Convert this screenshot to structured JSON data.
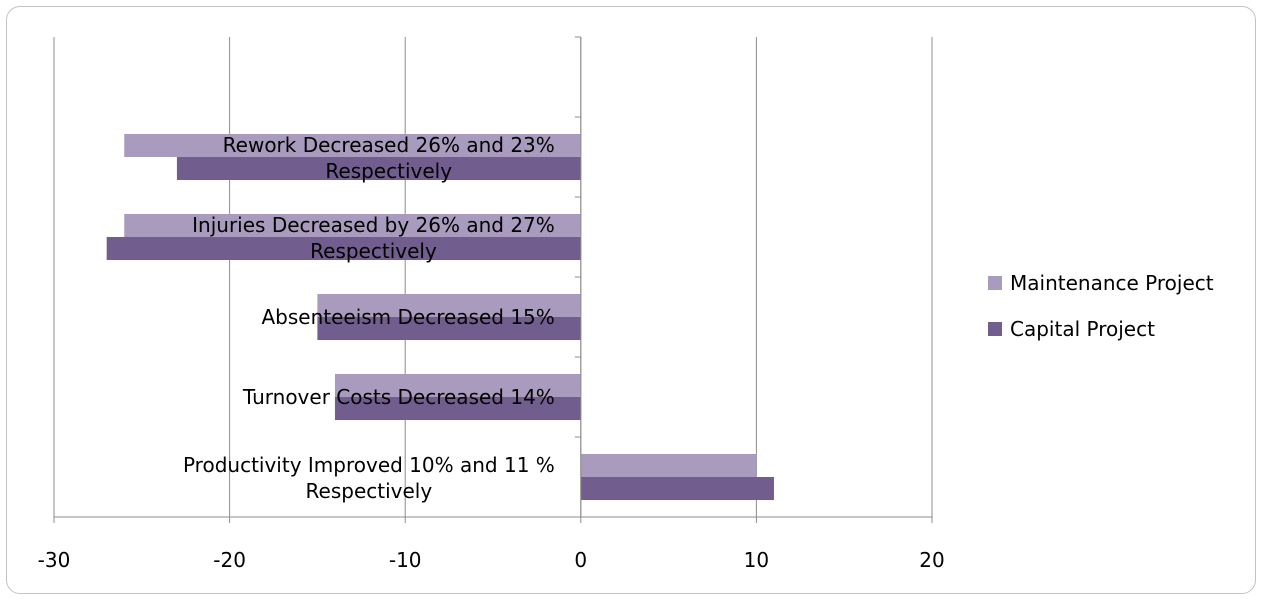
{
  "chart_data": {
    "type": "bar",
    "orientation": "horizontal",
    "title": "",
    "xlabel": "",
    "ylabel": "",
    "xlim": [
      -30,
      20
    ],
    "x_ticks": [
      -30,
      -20,
      -10,
      0,
      10,
      20
    ],
    "x_tick_labels": [
      "-30",
      "-20",
      "-10",
      "0",
      "10",
      "20"
    ],
    "grid": "vertical major gridlines",
    "legend_position": "right",
    "categories": [
      {
        "line1": "Rework Decreased 26% and 23%",
        "line2": "Respectively"
      },
      {
        "line1": "Injuries Decreased by 26% and 27%",
        "line2": "Respectively"
      },
      {
        "line1": "Absenteeism Decreased 15%",
        "line2": ""
      },
      {
        "line1": "Turnover Costs  Decreased 14%",
        "line2": ""
      },
      {
        "line1": "Productivity Improved 10% and 11 %",
        "line2": "Respectively"
      }
    ],
    "series": [
      {
        "name": "Maintenance Project",
        "color": "#a99bbd",
        "values": [
          -26,
          -26,
          -15,
          -14,
          10
        ]
      },
      {
        "name": "Capital Project",
        "color": "#725d8f",
        "values": [
          -23,
          -27,
          -15,
          -14,
          11
        ]
      }
    ]
  }
}
